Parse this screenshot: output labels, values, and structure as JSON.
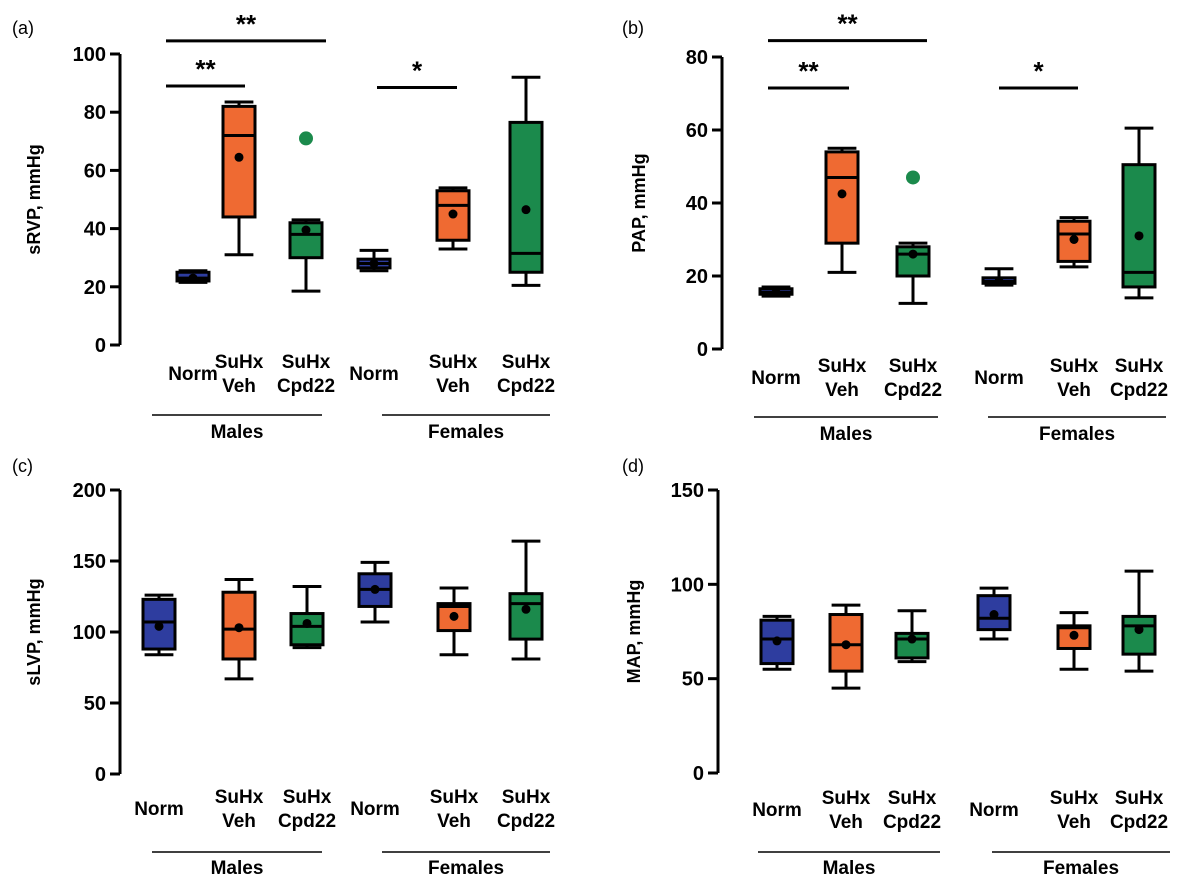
{
  "colors": {
    "norm": "#2e3d9f",
    "veh": "#ef6a32",
    "cpd22": "#1b8a4c",
    "outlier": "#1b8a4c",
    "axis": "#000000"
  },
  "group_labels": [
    "Males",
    "Females"
  ],
  "chart_data": [
    {
      "panel": "(a)",
      "type": "box",
      "ylabel": "sRVP, mmHg",
      "ylim": [
        0,
        100
      ],
      "yticks": [
        0,
        20,
        40,
        60,
        80,
        100
      ],
      "categories": [
        "Norm",
        "SuHx\nVeh",
        "SuHx\nCpd22",
        "Norm",
        "SuHx\nVeh",
        "SuHx\nCpd22"
      ],
      "groups": [
        "Males",
        "Females"
      ],
      "boxes": [
        {
          "min": 21.5,
          "q1": 22,
          "median": 23,
          "q3": 25,
          "max": 25.5,
          "mean": 23,
          "fill": "norm"
        },
        {
          "min": 31,
          "q1": 44,
          "median": 72,
          "q3": 82,
          "max": 83.5,
          "mean": 64.5,
          "fill": "veh"
        },
        {
          "min": 18.5,
          "q1": 30,
          "median": 38,
          "q3": 42,
          "max": 43,
          "mean": 39.5,
          "fill": "cpd22",
          "outliers": [
            71
          ]
        },
        {
          "min": 25.5,
          "q1": 26.5,
          "median": 28,
          "q3": 29.5,
          "max": 32.5,
          "mean": 28,
          "fill": "norm"
        },
        {
          "min": 33,
          "q1": 36,
          "median": 48,
          "q3": 53,
          "max": 54,
          "mean": 45,
          "fill": "veh"
        },
        {
          "min": 20.5,
          "q1": 25,
          "median": 31.5,
          "q3": 76.5,
          "max": 92,
          "mean": 46.5,
          "fill": "cpd22"
        }
      ],
      "significance": [
        {
          "from": 0,
          "to": 2,
          "label": "**",
          "y": 104.5
        },
        {
          "from": 0,
          "to": 1,
          "label": "**",
          "y": 89
        },
        {
          "from": 3,
          "to": 4,
          "label": "*",
          "y": 88.5
        }
      ]
    },
    {
      "panel": "(b)",
      "type": "box",
      "ylabel": "PAP, mmHg",
      "ylim": [
        0,
        80
      ],
      "yticks": [
        0,
        20,
        40,
        60,
        80
      ],
      "categories": [
        "Norm",
        "SuHx\nVeh",
        "SuHx\nCpd22",
        "Norm",
        "SuHx\nVeh",
        "SuHx\nCpd22"
      ],
      "groups": [
        "Males",
        "Females"
      ],
      "boxes": [
        {
          "min": 14.5,
          "q1": 15,
          "median": 15.5,
          "q3": 16.5,
          "max": 17,
          "mean": 15.5,
          "fill": "norm"
        },
        {
          "min": 21,
          "q1": 29,
          "median": 47,
          "q3": 54,
          "max": 55,
          "mean": 42.5,
          "fill": "veh"
        },
        {
          "min": 12.5,
          "q1": 20,
          "median": 26,
          "q3": 28,
          "max": 29,
          "mean": 26,
          "fill": "cpd22",
          "outliers": [
            47
          ]
        },
        {
          "min": 17.5,
          "q1": 18,
          "median": 18.5,
          "q3": 19.5,
          "max": 22,
          "mean": 18.5,
          "fill": "norm"
        },
        {
          "min": 22.5,
          "q1": 24,
          "median": 31.5,
          "q3": 35,
          "max": 36,
          "mean": 30,
          "fill": "veh"
        },
        {
          "min": 14,
          "q1": 17,
          "median": 21,
          "q3": 50.5,
          "max": 60.5,
          "mean": 31,
          "fill": "cpd22"
        }
      ],
      "significance": [
        {
          "from": 0,
          "to": 2,
          "label": "**",
          "y": 84.5
        },
        {
          "from": 0,
          "to": 1,
          "label": "**",
          "y": 71.5
        },
        {
          "from": 3,
          "to": 4,
          "label": "*",
          "y": 71.5
        }
      ]
    },
    {
      "panel": "(c)",
      "type": "box",
      "ylabel": "sLVP, mmHg",
      "ylim": [
        0,
        200
      ],
      "yticks": [
        0,
        50,
        100,
        150,
        200
      ],
      "categories": [
        "Norm",
        "SuHx\nVeh",
        "SuHx\nCpd22",
        "Norm",
        "SuHx\nVeh",
        "SuHx\nCpd22"
      ],
      "groups": [
        "Males",
        "Females"
      ],
      "boxes": [
        {
          "min": 84,
          "q1": 88,
          "median": 107,
          "q3": 123,
          "max": 126,
          "mean": 104,
          "fill": "norm"
        },
        {
          "min": 67,
          "q1": 81,
          "median": 102,
          "q3": 128,
          "max": 137,
          "mean": 103,
          "fill": "veh"
        },
        {
          "min": 89,
          "q1": 91,
          "median": 104,
          "q3": 113,
          "max": 132,
          "mean": 106,
          "fill": "cpd22"
        },
        {
          "min": 107,
          "q1": 118,
          "median": 130,
          "q3": 141,
          "max": 149,
          "mean": 130,
          "fill": "norm"
        },
        {
          "min": 84,
          "q1": 101,
          "median": 118,
          "q3": 120,
          "max": 131,
          "mean": 111,
          "fill": "veh"
        },
        {
          "min": 81,
          "q1": 95,
          "median": 120,
          "q3": 127,
          "max": 164,
          "mean": 116,
          "fill": "cpd22"
        }
      ]
    },
    {
      "panel": "(d)",
      "type": "box",
      "ylabel": "MAP, mmHg",
      "ylim": [
        0,
        150
      ],
      "yticks": [
        0,
        50,
        100,
        150
      ],
      "categories": [
        "Norm",
        "SuHx\nVeh",
        "SuHx\nCpd22",
        "Norm",
        "SuHx\nVeh",
        "SuHx\nCpd22"
      ],
      "groups": [
        "Males",
        "Females"
      ],
      "boxes": [
        {
          "min": 55,
          "q1": 58,
          "median": 71,
          "q3": 81,
          "max": 83,
          "mean": 70,
          "fill": "norm"
        },
        {
          "min": 45,
          "q1": 54,
          "median": 68,
          "q3": 84,
          "max": 89,
          "mean": 68,
          "fill": "veh"
        },
        {
          "min": 59,
          "q1": 61,
          "median": 71,
          "q3": 74,
          "max": 86,
          "mean": 71,
          "fill": "cpd22"
        },
        {
          "min": 71,
          "q1": 76,
          "median": 82,
          "q3": 94,
          "max": 98,
          "mean": 84,
          "fill": "norm"
        },
        {
          "min": 55,
          "q1": 66,
          "median": 77,
          "q3": 78,
          "max": 85,
          "mean": 73,
          "fill": "veh"
        },
        {
          "min": 54,
          "q1": 63,
          "median": 78,
          "q3": 83,
          "max": 107,
          "mean": 76,
          "fill": "cpd22"
        }
      ]
    }
  ]
}
